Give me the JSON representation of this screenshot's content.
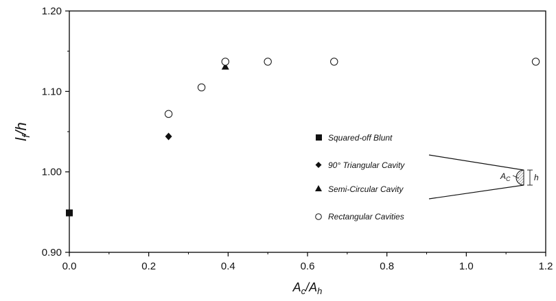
{
  "chart_data": {
    "type": "scatter",
    "xlim": [
      0.0,
      1.2
    ],
    "ylim": [
      0.9,
      1.2
    ],
    "x_ticks": [
      0.0,
      0.2,
      0.4,
      0.6,
      0.8,
      1.0,
      1.2
    ],
    "x_tick_labels": [
      "0.0",
      "0.2",
      "0.4",
      "0.6",
      "0.8",
      "1.0",
      "1.2"
    ],
    "y_ticks": [
      0.9,
      1.0,
      1.1,
      1.2
    ],
    "y_tick_labels": [
      "0.90",
      "1.00",
      "1.10",
      "1.20"
    ],
    "xlabel": {
      "main": "A",
      "sub1": "c",
      "sep": "/A",
      "sub2": "h"
    },
    "ylabel": {
      "main": "l",
      "sub1": "f",
      "sep": "/h"
    },
    "grid": false,
    "legend_position": "lower-right",
    "series": [
      {
        "name": "Squared-off Blunt",
        "marker": "square-filled",
        "points": [
          [
            0.0,
            0.949
          ]
        ]
      },
      {
        "name": "90° Triangular Cavity",
        "marker": "diamond-filled",
        "points": [
          [
            0.25,
            1.044
          ]
        ]
      },
      {
        "name": "Semi-Circular Cavity",
        "marker": "triangle-filled",
        "points": [
          [
            0.393,
            1.131
          ]
        ]
      },
      {
        "name": "Rectangular Cavities",
        "marker": "circle-open",
        "points": [
          [
            0.25,
            1.072
          ],
          [
            0.333,
            1.105
          ],
          [
            0.393,
            1.137
          ],
          [
            0.5,
            1.137
          ],
          [
            0.667,
            1.137
          ],
          [
            1.175,
            1.137
          ]
        ]
      }
    ],
    "inset": {
      "area_label_main": "A",
      "area_label_sub": "C",
      "height_label": "h"
    }
  }
}
